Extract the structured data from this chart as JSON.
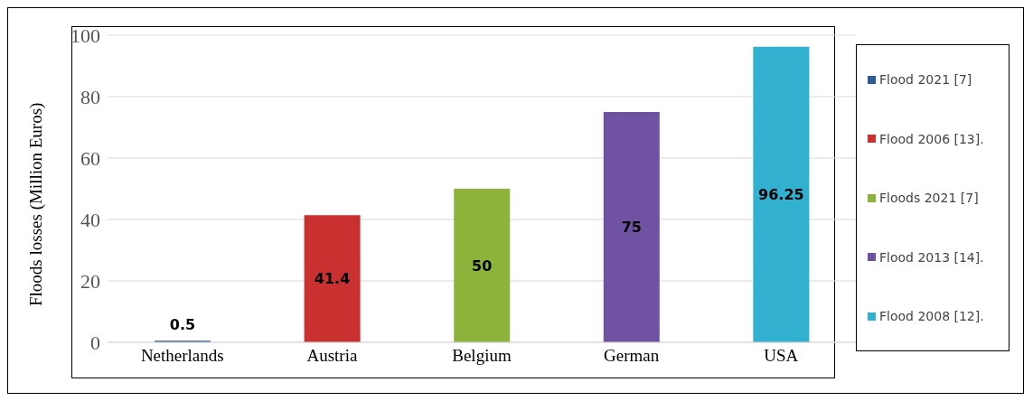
{
  "chart_data": {
    "type": "bar",
    "ylabel": "Floods losses (Million Euros)",
    "categories": [
      "Netherlands",
      "Austria",
      "Belgium",
      "German",
      "USA"
    ],
    "stacked": true,
    "series": [
      {
        "name": "Flood 2021 [7]",
        "color": "#2e5c9a",
        "values": [
          0.5,
          null,
          null,
          null,
          null
        ]
      },
      {
        "name": "Flood 2006 [13].",
        "color": "#c8312f",
        "values": [
          null,
          41.4,
          null,
          null,
          null
        ]
      },
      {
        "name": "Floods 2021 [7]",
        "color": "#8cb43a",
        "values": [
          null,
          null,
          50,
          null,
          null
        ]
      },
      {
        "name": "Flood 2013 [14].",
        "color": "#7052a3",
        "values": [
          null,
          null,
          null,
          75,
          null
        ]
      },
      {
        "name": "Flood 2008 [12].",
        "color": "#31b0cf",
        "values": [
          null,
          null,
          null,
          null,
          96.25
        ]
      }
    ],
    "ylim": [
      0,
      100
    ],
    "yticks": [
      0,
      20,
      40,
      60,
      80,
      100
    ],
    "grid": "y",
    "legend": "right",
    "data_labels": true
  }
}
